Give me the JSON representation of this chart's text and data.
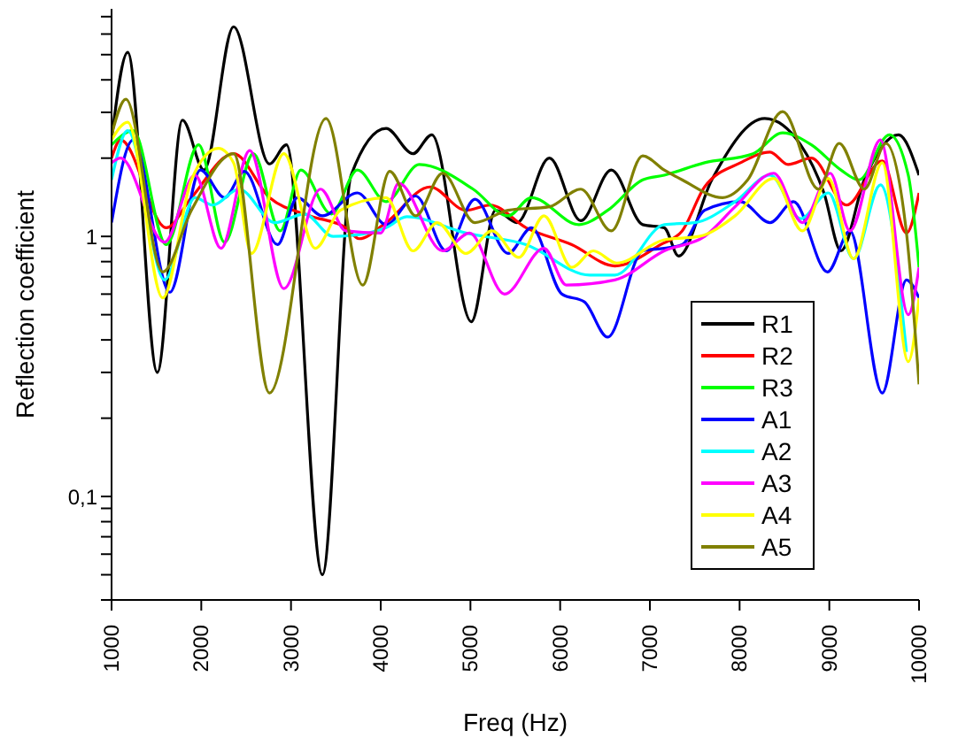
{
  "chart_data": {
    "type": "line",
    "xlabel": "Freq (Hz)",
    "ylabel": "Reflection coefficient",
    "log": "y",
    "grid": false,
    "legend": "bottom right",
    "marker": "none",
    "line_style": "solid",
    "xlim": [
      1000,
      10000
    ],
    "xticks": [
      1000,
      2000,
      3000,
      4000,
      5000,
      6000,
      7000,
      8000,
      9000,
      10000
    ],
    "ylim": [
      0.04,
      7.5
    ],
    "yticks": [
      {
        "value": 0.04,
        "label": null
      },
      {
        "value": 0.05,
        "label": null
      },
      {
        "value": 0.06,
        "label": null
      },
      {
        "value": 0.07,
        "label": null
      },
      {
        "value": 0.08,
        "label": null
      },
      {
        "value": 0.09,
        "label": null
      },
      {
        "value": 0.1,
        "label": "0,1"
      },
      {
        "value": 0.2,
        "label": null
      },
      {
        "value": 0.3,
        "label": null
      },
      {
        "value": 0.4,
        "label": null
      },
      {
        "value": 0.5,
        "label": null
      },
      {
        "value": 0.6,
        "label": null
      },
      {
        "value": 0.7,
        "label": null
      },
      {
        "value": 0.8,
        "label": null
      },
      {
        "value": 0.9,
        "label": null
      },
      1,
      {
        "value": 2,
        "label": null
      },
      {
        "value": 3,
        "label": null
      },
      {
        "value": 4,
        "label": null
      },
      {
        "value": 5,
        "label": null
      },
      {
        "value": 6,
        "label": null
      },
      {
        "value": 7,
        "label": null
      }
    ],
    "series": [
      {
        "name": "R1",
        "color": "#000000",
        "x": [
          1000,
          1180,
          1510,
          1790,
          2030,
          2360,
          2760,
          2950,
          3350,
          3670,
          4060,
          4360,
          4570,
          5010,
          5280,
          5520,
          5880,
          6230,
          6570,
          6920,
          7160,
          7320,
          7690,
          8280,
          8680,
          8940,
          9130,
          9390,
          9770,
          10000
        ],
        "values": [
          2.35,
          5.1,
          0.3,
          2.8,
          1.8,
          6.4,
          1.9,
          2.25,
          0.05,
          1.72,
          2.6,
          2.08,
          2.46,
          0.47,
          1.26,
          1.13,
          2.0,
          1.15,
          1.8,
          1.11,
          1.08,
          0.84,
          1.65,
          2.84,
          2.25,
          1.47,
          0.88,
          1.65,
          2.46,
          1.72
        ]
      },
      {
        "name": "R2",
        "color": "#ff0000",
        "x": [
          1000,
          1100,
          1610,
          1890,
          2360,
          2760,
          3210,
          3610,
          3760,
          4060,
          4550,
          4950,
          5220,
          5620,
          6130,
          6610,
          7120,
          7360,
          7610,
          8010,
          8340,
          8540,
          8800,
          9190,
          9590,
          9860,
          10000
        ],
        "values": [
          2.0,
          2.35,
          1.08,
          1.41,
          2.08,
          1.41,
          1.2,
          1.08,
          0.98,
          1.13,
          1.55,
          1.26,
          1.32,
          1.08,
          0.93,
          0.77,
          0.93,
          1.05,
          1.55,
          1.92,
          2.11,
          1.89,
          2.0,
          1.32,
          1.95,
          1.03,
          1.47
        ]
      },
      {
        "name": "R3",
        "color": "#00ff00",
        "x": [
          1000,
          1240,
          1610,
          1970,
          2260,
          2580,
          2880,
          3110,
          3450,
          3740,
          4060,
          4430,
          5030,
          5420,
          5680,
          6210,
          6530,
          6920,
          7160,
          7610,
          8150,
          8480,
          8800,
          9130,
          9330,
          9670,
          9880,
          10000
        ],
        "values": [
          2.25,
          2.55,
          0.93,
          2.25,
          0.95,
          2.08,
          1.05,
          1.8,
          1.22,
          1.8,
          1.36,
          1.89,
          1.52,
          1.2,
          1.41,
          1.11,
          1.26,
          1.65,
          1.72,
          1.92,
          2.08,
          2.5,
          2.25,
          1.8,
          1.65,
          2.46,
          1.72,
          0.76
        ]
      },
      {
        "name": "A1",
        "color": "#0000ff",
        "x": [
          1000,
          1240,
          1650,
          1990,
          2260,
          2480,
          2850,
          3070,
          3350,
          3740,
          4060,
          4390,
          4730,
          5050,
          5420,
          5680,
          6020,
          6270,
          6530,
          6920,
          7160,
          7360,
          7610,
          8010,
          8340,
          8600,
          8980,
          9230,
          9590,
          9860,
          10000
        ],
        "values": [
          1.13,
          2.35,
          0.61,
          1.8,
          1.41,
          1.78,
          0.93,
          1.41,
          1.2,
          1.47,
          1.11,
          1.43,
          0.88,
          1.39,
          0.86,
          1.08,
          0.6,
          0.56,
          0.41,
          0.88,
          0.9,
          0.93,
          1.26,
          1.36,
          1.13,
          1.36,
          0.73,
          1.05,
          0.25,
          0.68,
          0.58
        ]
      },
      {
        "name": "A2",
        "color": "#00ffff",
        "x": [
          1000,
          1180,
          1590,
          1930,
          2130,
          2420,
          2820,
          3150,
          3470,
          3860,
          4060,
          4290,
          4950,
          5620,
          6330,
          6610,
          7160,
          7500,
          7950,
          8340,
          8680,
          8990,
          9270,
          9570,
          9860
        ],
        "values": [
          1.65,
          2.55,
          0.68,
          1.41,
          1.32,
          1.52,
          1.13,
          1.22,
          1.0,
          1.03,
          1.08,
          1.19,
          1.03,
          0.93,
          0.71,
          0.71,
          1.11,
          1.13,
          1.36,
          1.72,
          1.17,
          1.47,
          0.82,
          1.58,
          0.36
        ]
      },
      {
        "name": "A3",
        "color": "#ff00ff",
        "x": [
          1000,
          1100,
          1590,
          1930,
          2220,
          2540,
          2920,
          3330,
          3610,
          4000,
          4200,
          4690,
          4990,
          5380,
          5820,
          6070,
          6610,
          7160,
          7610,
          7950,
          8380,
          8700,
          9010,
          9230,
          9570,
          9880,
          10000
        ],
        "values": [
          1.92,
          2.0,
          0.95,
          1.72,
          0.9,
          2.14,
          0.63,
          1.52,
          1.05,
          1.03,
          1.6,
          0.88,
          1.03,
          0.6,
          0.9,
          0.65,
          0.68,
          0.88,
          1.0,
          1.3,
          1.75,
          1.13,
          1.75,
          1.05,
          2.35,
          0.5,
          0.76
        ]
      },
      {
        "name": "A4",
        "color": "#ffff00",
        "x": [
          1000,
          1180,
          1570,
          1890,
          2190,
          2360,
          2560,
          2920,
          3270,
          3550,
          4060,
          4360,
          4630,
          4950,
          5240,
          5540,
          5820,
          6130,
          6370,
          6630,
          7160,
          7550,
          7950,
          8380,
          8700,
          8990,
          9270,
          9590,
          9880,
          10000
        ],
        "values": [
          2.35,
          2.75,
          0.58,
          1.65,
          2.18,
          1.92,
          0.86,
          2.08,
          0.9,
          1.26,
          1.41,
          0.88,
          1.13,
          0.86,
          1.05,
          0.83,
          1.2,
          0.76,
          0.88,
          0.79,
          0.97,
          1.0,
          1.2,
          1.67,
          1.05,
          1.67,
          0.82,
          1.92,
          0.33,
          0.58
        ]
      },
      {
        "name": "A5",
        "color": "#808000",
        "x": [
          1000,
          1160,
          1570,
          1890,
          2360,
          2760,
          3390,
          3800,
          4100,
          4390,
          4690,
          5050,
          5420,
          5880,
          6230,
          6570,
          6920,
          7160,
          7360,
          7810,
          8090,
          8480,
          8880,
          9110,
          9390,
          9630,
          9860,
          10000
        ],
        "values": [
          2.46,
          3.37,
          0.73,
          1.26,
          2.08,
          0.25,
          2.84,
          0.65,
          1.78,
          1.2,
          1.75,
          1.13,
          1.26,
          1.3,
          1.52,
          1.05,
          2.04,
          1.8,
          1.65,
          1.41,
          1.65,
          3.02,
          1.52,
          2.28,
          1.52,
          2.28,
          1.03,
          0.27
        ]
      }
    ]
  }
}
